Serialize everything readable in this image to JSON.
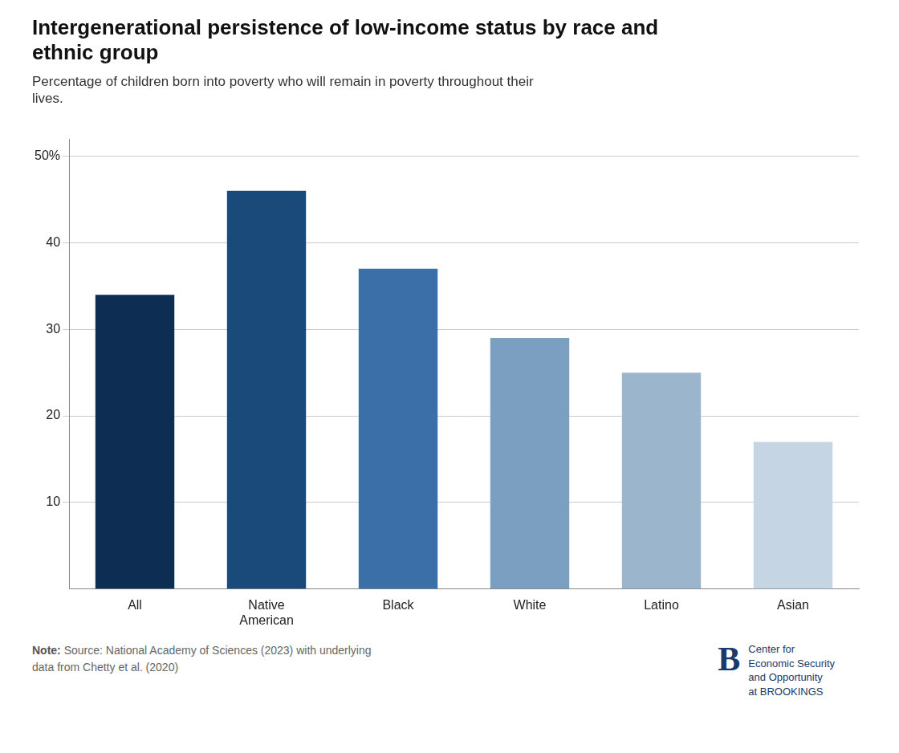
{
  "chart_data": {
    "type": "bar",
    "title": [
      "Intergenerational persistence of low-income status by race and",
      "ethnic group"
    ],
    "subtitle": [
      "Percentage of children born into poverty who will remain in poverty throughout their",
      "lives."
    ],
    "categories": [
      "All",
      "Native\nAmerican",
      "Black",
      "White",
      "Latino",
      "Asian"
    ],
    "values": [
      34,
      46,
      37,
      29,
      25,
      17
    ],
    "colors": [
      "#0d2d52",
      "#1a4a7a",
      "#3a6fa8",
      "#7a9fc0",
      "#9ab5cc",
      "#c5d5e4"
    ],
    "ylim": [
      0,
      52
    ],
    "yticks": [
      10,
      20,
      30,
      40,
      {
        "value": 50,
        "label": "50%"
      }
    ],
    "grid": true,
    "annotations": [
      "Note:",
      "Source: National Academy of Sciences (2023) with underlying\ndata from Chetty et al. (2020)",
      "B",
      "Center for\nEconomic Security\nand Opportunity\nat BROOKINGS"
    ]
  }
}
